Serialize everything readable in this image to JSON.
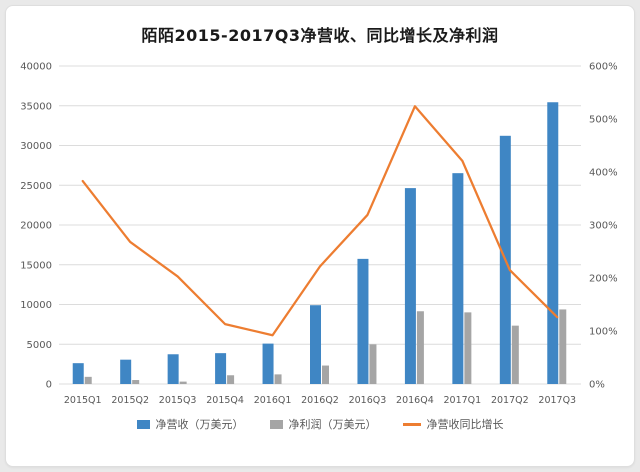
{
  "chart_data": {
    "type": "combo",
    "title": "陌陌2015-2017Q3净营收、同比增长及净利润",
    "categories": [
      "2015Q1",
      "2015Q2",
      "2015Q3",
      "2015Q4",
      "2016Q1",
      "2016Q2",
      "2016Q3",
      "2016Q4",
      "2017Q1",
      "2017Q2",
      "2017Q3"
    ],
    "series": [
      {
        "name": "净营收（万美元）",
        "type": "bar",
        "axis": "left",
        "color": "#3f86c4",
        "values": [
          2620,
          3060,
          3740,
          3880,
          5080,
          9910,
          15740,
          24640,
          26520,
          31220,
          35440
        ]
      },
      {
        "name": "净利润（万美元）",
        "type": "bar",
        "axis": "left",
        "color": "#a5a5a5",
        "values": [
          900,
          500,
          300,
          1100,
          1210,
          2320,
          4990,
          9150,
          9010,
          7340,
          9380
        ]
      },
      {
        "name": "净营收同比增长",
        "type": "line",
        "axis": "right",
        "color": "#ed7d31",
        "values": [
          383,
          268,
          203,
          113,
          92,
          222,
          319,
          524,
          421,
          215,
          126
        ]
      }
    ],
    "left_axis": {
      "min": 0,
      "max": 40000,
      "step": 5000,
      "ticks": [
        "0",
        "5000",
        "10000",
        "15000",
        "20000",
        "25000",
        "30000",
        "35000",
        "40000"
      ]
    },
    "right_axis": {
      "min": 0,
      "max": 600,
      "step": 100,
      "ticks": [
        "0%",
        "100%",
        "200%",
        "300%",
        "400%",
        "500%",
        "600%"
      ]
    },
    "grid": true,
    "legend_position": "bottom",
    "grid_color": "#dcdcdc",
    "tick_label_color": "#595959"
  }
}
